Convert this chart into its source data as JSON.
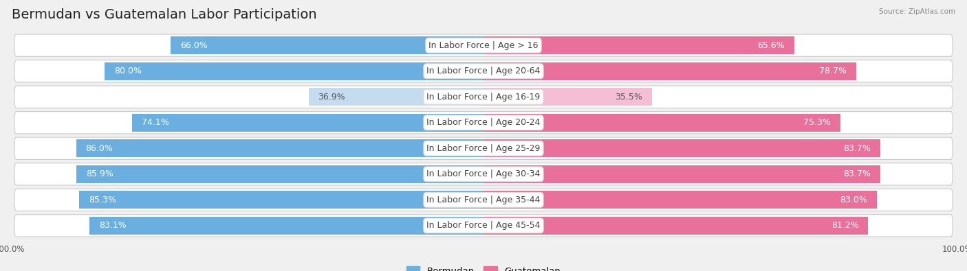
{
  "title": "Bermudan vs Guatemalan Labor Participation",
  "source": "Source: ZipAtlas.com",
  "categories": [
    "In Labor Force | Age > 16",
    "In Labor Force | Age 20-64",
    "In Labor Force | Age 16-19",
    "In Labor Force | Age 20-24",
    "In Labor Force | Age 25-29",
    "In Labor Force | Age 30-34",
    "In Labor Force | Age 35-44",
    "In Labor Force | Age 45-54"
  ],
  "bermudan": [
    66.0,
    80.0,
    36.9,
    74.1,
    86.0,
    85.9,
    85.3,
    83.1
  ],
  "guatemalan": [
    65.6,
    78.7,
    35.5,
    75.3,
    83.7,
    83.7,
    83.0,
    81.2
  ],
  "bermudan_color": "#6aafe0",
  "bermudan_color_light": "#c5dbf0",
  "guatemalan_color": "#e8709a",
  "guatemalan_color_light": "#f5bed4",
  "max_val": 100.0,
  "bg_color": "#f0f0f0",
  "row_bg_color": "#ffffff",
  "outer_bg_color": "#e8e8e8",
  "title_fontsize": 14,
  "label_fontsize": 9,
  "value_fontsize": 9
}
